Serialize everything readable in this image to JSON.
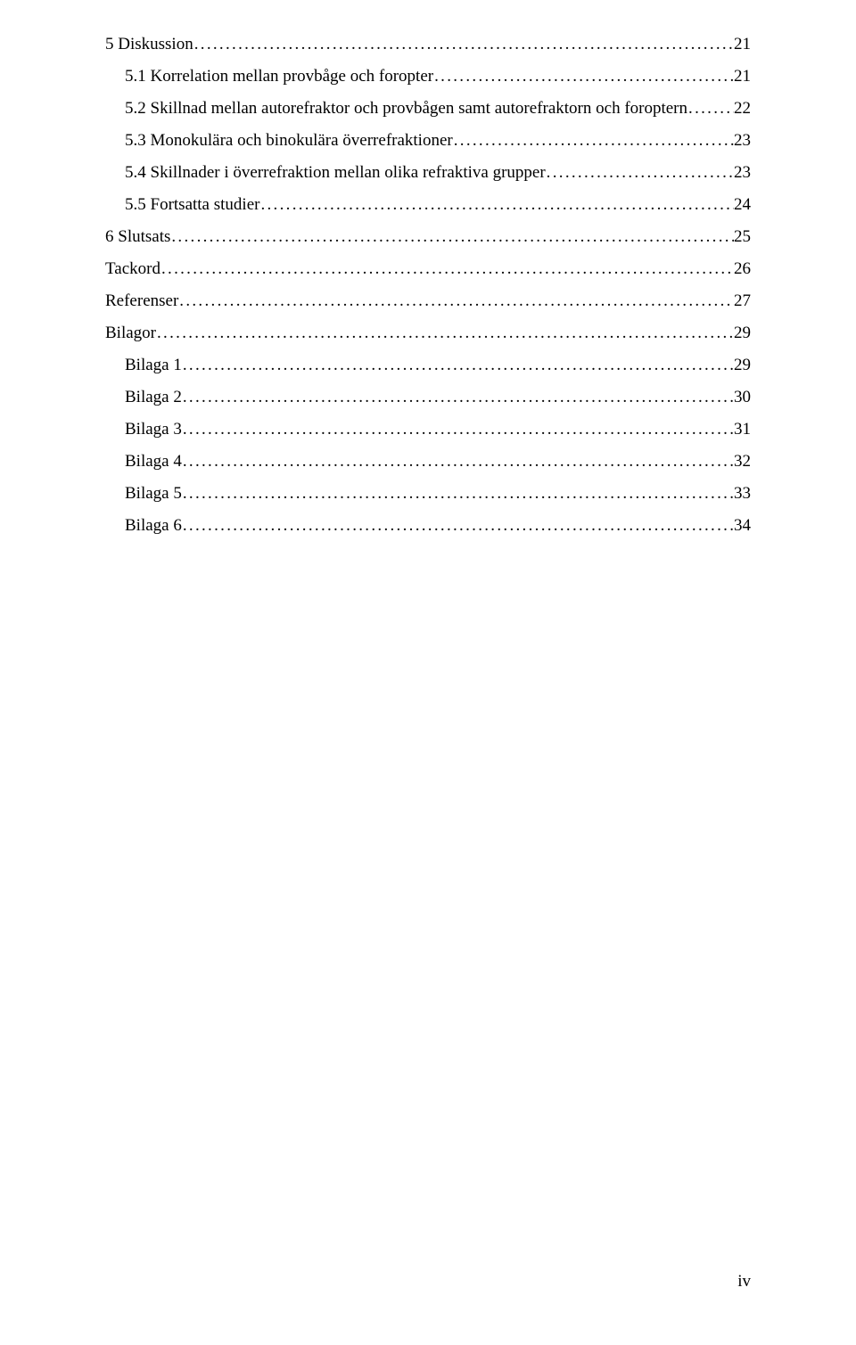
{
  "toc": {
    "entries": [
      {
        "label": "5 Diskussion",
        "page": "21",
        "indent": 0
      },
      {
        "label": "5.1 Korrelation mellan provbåge och foropter",
        "page": "21",
        "indent": 1
      },
      {
        "label": "5.2 Skillnad mellan autorefraktor och provbågen samt autorefraktorn och foroptern",
        "page": "22",
        "indent": 1
      },
      {
        "label": "5.3 Monokulära och binokulära överrefraktioner",
        "page": "23",
        "indent": 1
      },
      {
        "label": "5.4 Skillnader i överrefraktion mellan olika refraktiva grupper",
        "page": "23",
        "indent": 1
      },
      {
        "label": "5.5 Fortsatta studier",
        "page": "24",
        "indent": 1
      },
      {
        "label": "6 Slutsats",
        "page": "25",
        "indent": 0
      },
      {
        "label": "Tackord",
        "page": "26",
        "indent": 0
      },
      {
        "label": "Referenser",
        "page": "27",
        "indent": 0
      },
      {
        "label": "Bilagor",
        "page": "29",
        "indent": 0
      },
      {
        "label": "Bilaga 1",
        "page": "29",
        "indent": 1
      },
      {
        "label": "Bilaga 2",
        "page": "30",
        "indent": 1
      },
      {
        "label": "Bilaga 3",
        "page": "31",
        "indent": 1
      },
      {
        "label": "Bilaga 4",
        "page": "32",
        "indent": 1
      },
      {
        "label": "Bilaga 5",
        "page": "33",
        "indent": 1
      },
      {
        "label": "Bilaga 6",
        "page": "34",
        "indent": 1
      }
    ]
  },
  "footer": {
    "page_number": "iv"
  }
}
